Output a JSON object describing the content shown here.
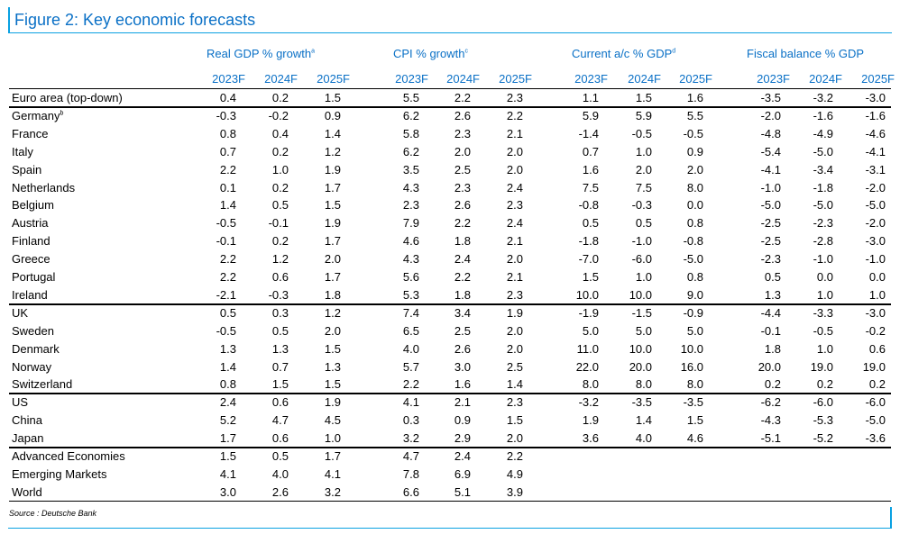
{
  "title": "Figure 2: Key economic forecasts",
  "source": "Source : Deutsche Bank",
  "colors": {
    "accent": "#0aa1e2",
    "title": "#0a70c6"
  },
  "groups": [
    {
      "label": "Real GDP % growth",
      "note": "a"
    },
    {
      "label": "CPI % growth",
      "note": "c"
    },
    {
      "label": "Current a/c % GDP",
      "note": "d"
    },
    {
      "label": "Fiscal balance % GDP",
      "note": ""
    }
  ],
  "years": [
    "2023F",
    "2024F",
    "2025F",
    "2023F",
    "2024F",
    "2025F",
    "2023F",
    "2024F",
    "2025F",
    "2023F",
    "2024F",
    "2025F"
  ],
  "rows": [
    {
      "name": "Euro area (top-down)",
      "note": "",
      "values": [
        "0.4",
        "0.2",
        "1.5",
        "5.5",
        "2.2",
        "2.3",
        "1.1",
        "1.5",
        "1.6",
        "-3.5",
        "-3.2",
        "-3.0"
      ]
    },
    {
      "name": "Germany",
      "note": "b",
      "values": [
        "-0.3",
        "-0.2",
        "0.9",
        "6.2",
        "2.6",
        "2.2",
        "5.9",
        "5.9",
        "5.5",
        "-2.0",
        "-1.6",
        "-1.6"
      ]
    },
    {
      "name": "France",
      "note": "",
      "values": [
        "0.8",
        "0.4",
        "1.4",
        "5.8",
        "2.3",
        "2.1",
        "-1.4",
        "-0.5",
        "-0.5",
        "-4.8",
        "-4.9",
        "-4.6"
      ]
    },
    {
      "name": "Italy",
      "note": "",
      "values": [
        "0.7",
        "0.2",
        "1.2",
        "6.2",
        "2.0",
        "2.0",
        "0.7",
        "1.0",
        "0.9",
        "-5.4",
        "-5.0",
        "-4.1"
      ]
    },
    {
      "name": "Spain",
      "note": "",
      "values": [
        "2.2",
        "1.0",
        "1.9",
        "3.5",
        "2.5",
        "2.0",
        "1.6",
        "2.0",
        "2.0",
        "-4.1",
        "-3.4",
        "-3.1"
      ]
    },
    {
      "name": "Netherlands",
      "note": "",
      "values": [
        "0.1",
        "0.2",
        "1.7",
        "4.3",
        "2.3",
        "2.4",
        "7.5",
        "7.5",
        "8.0",
        "-1.0",
        "-1.8",
        "-2.0"
      ]
    },
    {
      "name": "Belgium",
      "note": "",
      "values": [
        "1.4",
        "0.5",
        "1.5",
        "2.3",
        "2.6",
        "2.3",
        "-0.8",
        "-0.3",
        "0.0",
        "-5.0",
        "-5.0",
        "-5.0"
      ]
    },
    {
      "name": "Austria",
      "note": "",
      "values": [
        "-0.5",
        "-0.1",
        "1.9",
        "7.9",
        "2.2",
        "2.4",
        "0.5",
        "0.5",
        "0.8",
        "-2.5",
        "-2.3",
        "-2.0"
      ]
    },
    {
      "name": "Finland",
      "note": "",
      "values": [
        "-0.1",
        "0.2",
        "1.7",
        "4.6",
        "1.8",
        "2.1",
        "-1.8",
        "-1.0",
        "-0.8",
        "-2.5",
        "-2.8",
        "-3.0"
      ]
    },
    {
      "name": "Greece",
      "note": "",
      "values": [
        "2.2",
        "1.2",
        "2.0",
        "4.3",
        "2.4",
        "2.0",
        "-7.0",
        "-6.0",
        "-5.0",
        "-2.3",
        "-1.0",
        "-1.0"
      ]
    },
    {
      "name": "Portugal",
      "note": "",
      "values": [
        "2.2",
        "0.6",
        "1.7",
        "5.6",
        "2.2",
        "2.1",
        "1.5",
        "1.0",
        "0.8",
        "0.5",
        "0.0",
        "0.0"
      ]
    },
    {
      "name": "Ireland",
      "note": "",
      "values": [
        "-2.1",
        "-0.3",
        "1.8",
        "5.3",
        "1.8",
        "2.3",
        "10.0",
        "10.0",
        "9.0",
        "1.3",
        "1.0",
        "1.0"
      ]
    },
    {
      "name": "UK",
      "note": "",
      "values": [
        "0.5",
        "0.3",
        "1.2",
        "7.4",
        "3.4",
        "1.9",
        "-1.9",
        "-1.5",
        "-0.9",
        "-4.4",
        "-3.3",
        "-3.0"
      ]
    },
    {
      "name": "Sweden",
      "note": "",
      "values": [
        "-0.5",
        "0.5",
        "2.0",
        "6.5",
        "2.5",
        "2.0",
        "5.0",
        "5.0",
        "5.0",
        "-0.1",
        "-0.5",
        "-0.2"
      ]
    },
    {
      "name": "Denmark",
      "note": "",
      "values": [
        "1.3",
        "1.3",
        "1.5",
        "4.0",
        "2.6",
        "2.0",
        "11.0",
        "10.0",
        "10.0",
        "1.8",
        "1.0",
        "0.6"
      ]
    },
    {
      "name": "Norway",
      "note": "",
      "values": [
        "1.4",
        "0.7",
        "1.3",
        "5.7",
        "3.0",
        "2.5",
        "22.0",
        "20.0",
        "16.0",
        "20.0",
        "19.0",
        "19.0"
      ]
    },
    {
      "name": "Switzerland",
      "note": "",
      "values": [
        "0.8",
        "1.5",
        "1.5",
        "2.2",
        "1.6",
        "1.4",
        "8.0",
        "8.0",
        "8.0",
        "0.2",
        "0.2",
        "0.2"
      ]
    },
    {
      "name": "US",
      "note": "",
      "values": [
        "2.4",
        "0.6",
        "1.9",
        "4.1",
        "2.1",
        "2.3",
        "-3.2",
        "-3.5",
        "-3.5",
        "-6.2",
        "-6.0",
        "-6.0"
      ]
    },
    {
      "name": "China",
      "note": "",
      "values": [
        "5.2",
        "4.7",
        "4.5",
        "0.3",
        "0.9",
        "1.5",
        "1.9",
        "1.4",
        "1.5",
        "-4.3",
        "-5.3",
        "-5.0"
      ]
    },
    {
      "name": "Japan",
      "note": "",
      "values": [
        "1.7",
        "0.6",
        "1.0",
        "3.2",
        "2.9",
        "2.0",
        "3.6",
        "4.0",
        "4.6",
        "-5.1",
        "-5.2",
        "-3.6"
      ]
    },
    {
      "name": "Advanced Economies",
      "note": "",
      "values": [
        "1.5",
        "0.5",
        "1.7",
        "4.7",
        "2.4",
        "2.2",
        "",
        "",
        "",
        "",
        "",
        ""
      ]
    },
    {
      "name": "Emerging Markets",
      "note": "",
      "values": [
        "4.1",
        "4.0",
        "4.1",
        "7.8",
        "6.9",
        "4.9",
        "",
        "",
        "",
        "",
        "",
        ""
      ]
    },
    {
      "name": "World",
      "note": "",
      "values": [
        "3.0",
        "2.6",
        "3.2",
        "6.6",
        "5.1",
        "3.9",
        "",
        "",
        "",
        "",
        "",
        ""
      ]
    }
  ]
}
